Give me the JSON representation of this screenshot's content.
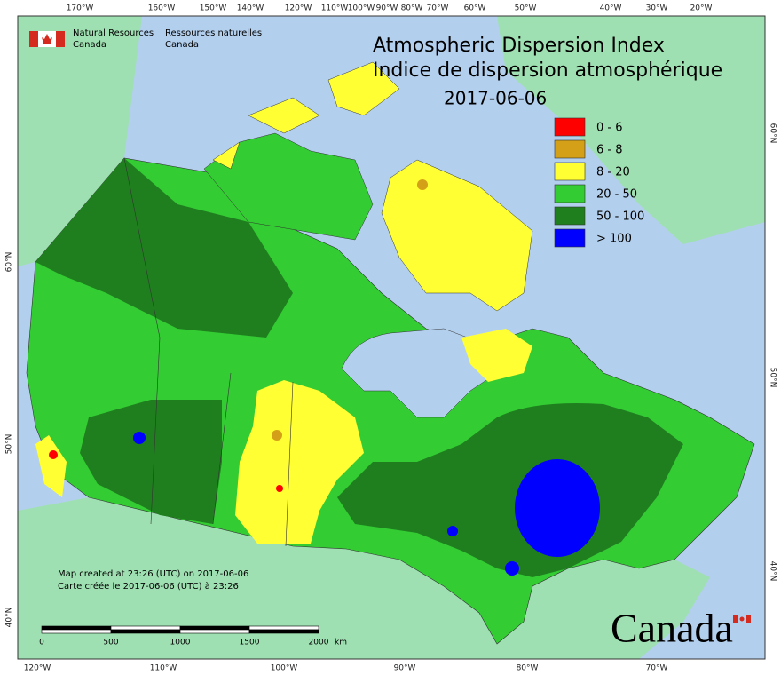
{
  "header": {
    "org_en": [
      "Natural Resources",
      "Canada"
    ],
    "org_fr": [
      "Ressources naturelles",
      "Canada"
    ]
  },
  "title": {
    "en": "Atmospheric Dispersion Index",
    "fr": "Indice de dispersion atmosphérique",
    "date": "2017-06-06"
  },
  "legend": [
    {
      "label": "0 - 6",
      "color": "#ff0000"
    },
    {
      "label": "6 - 8",
      "color": "#d4a017"
    },
    {
      "label": "8 - 20",
      "color": "#ffff33"
    },
    {
      "label": "20 - 50",
      "color": "#33cc33"
    },
    {
      "label": "50 - 100",
      "color": "#1f7f1f"
    },
    {
      "label": "> 100",
      "color": "#0000ff"
    }
  ],
  "graticule": {
    "top": [
      "170°W",
      "160°W",
      "150°W",
      "140°W",
      "120°W",
      "110°W",
      "100°W",
      "90°W",
      "80°W",
      "70°W",
      "60°W",
      "50°W",
      "40°W",
      "30°W",
      "20°W"
    ],
    "bottom": [
      "120°W",
      "110°W",
      "100°W",
      "90°W",
      "80°W",
      "70°W"
    ],
    "left": [
      "60°N",
      "50°N",
      "40°N"
    ],
    "right": [
      "60°N",
      "50°N",
      "40°N"
    ]
  },
  "notes": [
    "Map created at 23:26 (UTC) on 2017-06-06",
    "Carte créée le 2017-06-06 (UTC) à 23:26"
  ],
  "scale_bar": {
    "labels": [
      0,
      500,
      1000,
      1500,
      2000
    ],
    "unit": "km"
  },
  "wordmark": "Canada"
}
